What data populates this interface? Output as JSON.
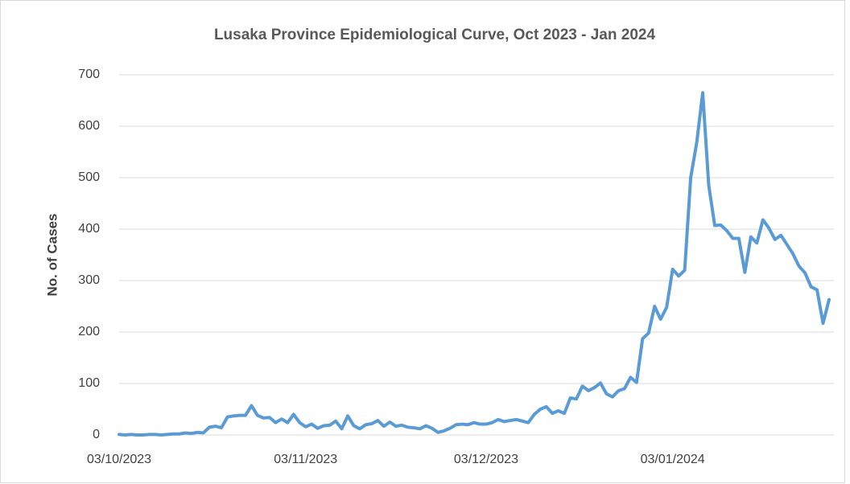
{
  "chart_data": {
    "type": "line",
    "title": "Lusaka Province Epidemiological Curve, Oct 2023 - Jan 2024",
    "y_label": "No. of Cases",
    "categories": [
      "03/10/2023",
      null,
      null,
      null,
      null,
      null,
      null,
      null,
      null,
      null,
      null,
      null,
      null,
      null,
      null,
      null,
      null,
      null,
      null,
      null,
      null,
      null,
      null,
      null,
      null,
      null,
      null,
      null,
      null,
      null,
      null,
      "03/11/2023",
      null,
      null,
      null,
      null,
      null,
      null,
      null,
      null,
      null,
      null,
      null,
      null,
      null,
      null,
      null,
      null,
      null,
      null,
      null,
      null,
      null,
      null,
      null,
      null,
      null,
      null,
      null,
      null,
      null,
      "03/12/2023",
      null,
      null,
      null,
      null,
      null,
      null,
      null,
      null,
      null,
      null,
      null,
      null,
      null,
      null,
      null,
      null,
      null,
      null,
      null,
      null,
      null,
      null,
      null,
      null,
      null,
      null,
      null,
      null,
      null,
      null,
      "03/01/2024",
      null,
      null,
      null,
      null,
      null,
      null,
      null,
      null,
      null,
      null,
      null,
      null,
      null,
      null,
      null,
      null,
      null,
      null,
      null,
      null,
      null,
      null,
      null,
      null,
      null,
      null
    ],
    "values": [
      1,
      0,
      1,
      0,
      0,
      1,
      1,
      0,
      1,
      2,
      2,
      4,
      3,
      5,
      4,
      15,
      17,
      14,
      35,
      37,
      38,
      38,
      57,
      38,
      33,
      34,
      24,
      31,
      24,
      40,
      24,
      16,
      21,
      13,
      18,
      19,
      27,
      12,
      37,
      18,
      12,
      20,
      22,
      28,
      17,
      25,
      17,
      19,
      15,
      14,
      12,
      18,
      13,
      5,
      8,
      13,
      20,
      21,
      20,
      24,
      21,
      21,
      24,
      30,
      26,
      28,
      30,
      27,
      24,
      40,
      50,
      55,
      42,
      47,
      42,
      72,
      70,
      95,
      86,
      92,
      101,
      80,
      74,
      86,
      90,
      112,
      102,
      187,
      198,
      250,
      225,
      248,
      322,
      309,
      320,
      500,
      568,
      665,
      485,
      407,
      408,
      397,
      382,
      382,
      316,
      385,
      373,
      418,
      402,
      380,
      388,
      370,
      352,
      328,
      315,
      288,
      282,
      217,
      263
    ],
    "color": "#5b9bd5",
    "ylim": [
      0,
      700
    ],
    "yticks": [
      0,
      100,
      200,
      300,
      400,
      500,
      600,
      700
    ],
    "grid": true
  }
}
